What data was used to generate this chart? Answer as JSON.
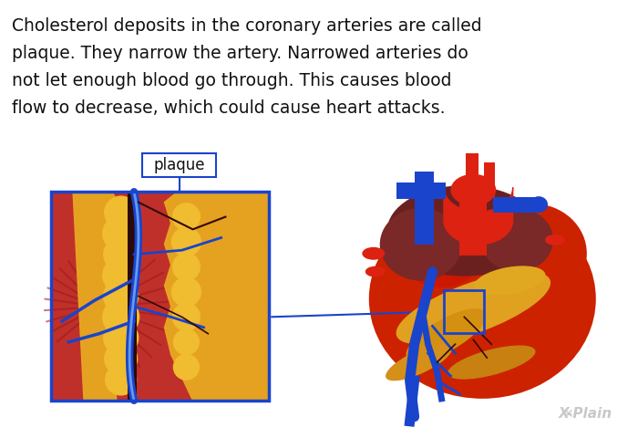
{
  "background_color": "#ffffff",
  "text_line1": "Cholesterol deposits in the coronary arteries are called",
  "text_line2": "plaque. They narrow the artery. Narrowed arteries do",
  "text_line3": "not let enough blood go through. This causes blood",
  "text_line4": "flow to decrease, which could cause heart attacks.",
  "text_fontsize": 13.5,
  "text_color": "#111111",
  "label_text": "plaque",
  "label_fontsize": 12,
  "blue_color": "#1a44cc",
  "zoom_box_color": "#1a44cc",
  "connector_color": "#2255dd",
  "watermark_color": "#c8c8c8",
  "watermark_fontsize": 11
}
